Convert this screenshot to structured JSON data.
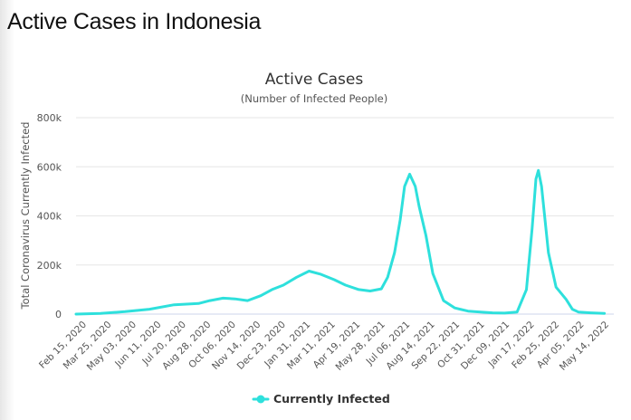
{
  "page": {
    "title": "Active Cases in Indonesia"
  },
  "colors": {
    "series": "#2ee0dc",
    "grid": "#e6e6e6"
  },
  "chart_data": {
    "type": "line",
    "title": "Active Cases",
    "subtitle": "(Number of Infected People)",
    "ylabel": "Total Coronavirus Currently Infected",
    "xlabel": "",
    "ylim": [
      0,
      800000
    ],
    "yticks": [
      0,
      200000,
      400000,
      600000,
      800000
    ],
    "ytick_labels": [
      "0",
      "200k",
      "400k",
      "600k",
      "800k"
    ],
    "xtick_labels": [
      "Feb 15, 2020",
      "Mar 25, 2020",
      "May 03, 2020",
      "Jun 11, 2020",
      "Jul 20, 2020",
      "Aug 28, 2020",
      "Oct 06, 2020",
      "Nov 14, 2020",
      "Dec 23, 2020",
      "Jan 31, 2021",
      "Mar 11, 2021",
      "Apr 19, 2021",
      "May 28, 2021",
      "Jul 06, 2021",
      "Aug 14, 2021",
      "Sep 22, 2021",
      "Oct 31, 2021",
      "Dec 09, 2021",
      "Jan 17, 2022",
      "Feb 25, 2022",
      "Apr 05, 2022",
      "May 14, 2022"
    ],
    "grid": true,
    "legend_position": "bottom",
    "series": [
      {
        "name": "Currently Infected",
        "x": [
          "2020-02-15",
          "2020-03-25",
          "2020-05-03",
          "2020-06-11",
          "2020-07-20",
          "2020-08-28",
          "2020-09-15",
          "2020-10-06",
          "2020-10-25",
          "2020-11-14",
          "2020-12-05",
          "2020-12-23",
          "2021-01-10",
          "2021-01-31",
          "2021-02-20",
          "2021-03-11",
          "2021-04-01",
          "2021-04-19",
          "2021-05-10",
          "2021-05-28",
          "2021-06-15",
          "2021-06-25",
          "2021-07-06",
          "2021-07-15",
          "2021-07-22",
          "2021-07-30",
          "2021-08-08",
          "2021-08-14",
          "2021-08-25",
          "2021-09-05",
          "2021-09-22",
          "2021-10-10",
          "2021-10-31",
          "2021-11-20",
          "2021-12-09",
          "2021-12-28",
          "2022-01-17",
          "2022-02-01",
          "2022-02-10",
          "2022-02-16",
          "2022-02-20",
          "2022-02-25",
          "2022-03-08",
          "2022-03-20",
          "2022-04-05",
          "2022-04-15",
          "2022-04-25",
          "2022-05-14",
          "2022-06-05"
        ],
        "y": [
          0,
          3000,
          10000,
          20000,
          38000,
          43000,
          55000,
          65000,
          62000,
          55000,
          75000,
          100000,
          118000,
          150000,
          175000,
          162000,
          140000,
          118000,
          100000,
          94000,
          103000,
          150000,
          250000,
          385000,
          520000,
          570000,
          520000,
          440000,
          320000,
          165000,
          55000,
          25000,
          12000,
          8000,
          5000,
          4000,
          8000,
          100000,
          350000,
          550000,
          585000,
          520000,
          250000,
          110000,
          60000,
          20000,
          8000,
          5000,
          3000
        ]
      }
    ]
  }
}
